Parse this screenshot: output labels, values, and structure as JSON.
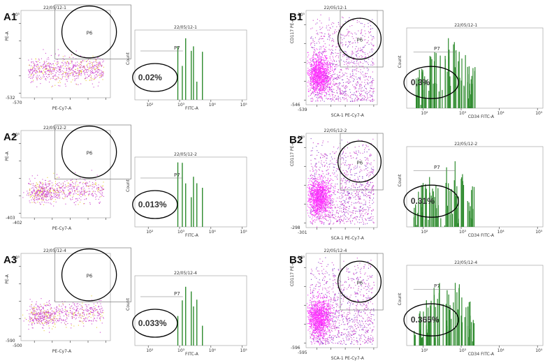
{
  "figure": {
    "panels": [
      {
        "id": "A1",
        "row": 0,
        "col": 0,
        "sample": "22/05/12-1",
        "ylabel": "PE-A",
        "xlabel": "PE-Cy7-A",
        "gate": "P6",
        "ytick_bottom": "-532",
        "xtick_left": "-570",
        "ytick_top": "10⁵"
      },
      {
        "id": "A2",
        "row": 1,
        "col": 0,
        "sample": "22/05/12-2",
        "ylabel": "PE-A",
        "xlabel": "PE-Cy7-A",
        "gate": "P6",
        "ytick_bottom": "-403",
        "xtick_left": "-402",
        "ytick_top": "10⁵"
      },
      {
        "id": "A3",
        "row": 2,
        "col": 0,
        "sample": "22/05/12-4",
        "ylabel": "PE-A",
        "xlabel": "PE-Cy7-A",
        "gate": "P6",
        "ytick_bottom": "-590",
        "xtick_left": "-500",
        "ytick_top": "10⁵"
      },
      {
        "id": "B1",
        "row": 0,
        "col": 1,
        "sample": "22/05/12-1",
        "ylabel": "CD117 PE-A",
        "xlabel": "SCA-1 PE-Cy7-A",
        "gate": "P6",
        "ytick_bottom": "-546",
        "xtick_left": "-539",
        "ytick_top": "10⁵"
      },
      {
        "id": "B2",
        "row": 1,
        "col": 1,
        "sample": "22/05/12-2",
        "ylabel": "CD117 PE-A",
        "xlabel": "SCA-1 PE-Cy7-A",
        "gate": "P6",
        "ytick_bottom": "-298",
        "xtick_left": "-301",
        "ytick_top": "10⁵"
      },
      {
        "id": "B3",
        "row": 2,
        "col": 1,
        "sample": "22/05/12-4",
        "ylabel": "CD117 PE-A",
        "xlabel": "SCA-1 PE-Cy7-A",
        "gate": "P6",
        "ytick_bottom": "-596",
        "xtick_left": "-595",
        "ytick_top": "10⁵"
      }
    ],
    "histograms": [
      {
        "id": "A1h",
        "row": 0,
        "col": 0,
        "sample": "22/05/12-1",
        "xlabel": "FITC-A",
        "ylabel": "Count",
        "gate": "P7",
        "percent": "0.02%"
      },
      {
        "id": "A2h",
        "row": 1,
        "col": 0,
        "sample": "22/05/12-2",
        "xlabel": "FITC-A",
        "ylabel": "Count",
        "gate": "P7",
        "percent": "0.013%"
      },
      {
        "id": "A3h",
        "row": 2,
        "col": 0,
        "sample": "22/05/12-4",
        "xlabel": "FITC-A",
        "ylabel": "Count",
        "gate": "P7",
        "percent": "0.033%"
      },
      {
        "id": "B1h",
        "row": 0,
        "col": 1,
        "sample": "22/05/12-1",
        "xlabel": "CD34 FITC-A",
        "ylabel": "Count",
        "gate": "P7",
        "percent": "0,3%"
      },
      {
        "id": "B2h",
        "row": 1,
        "col": 1,
        "sample": "22/05/12-2",
        "xlabel": "CD34 FITC-A",
        "ylabel": "Count",
        "gate": "P7",
        "percent": "0.31%"
      },
      {
        "id": "B3h",
        "row": 2,
        "col": 1,
        "sample": "22/05/12-4",
        "xlabel": "CD34 FITC-A",
        "ylabel": "Count",
        "gate": "P7",
        "percent": "0.365%"
      }
    ],
    "xticks_hist": [
      "10²",
      "10³",
      "10⁴",
      "10⁵"
    ],
    "colors": {
      "dots_primary": "#cc44cc",
      "dots_secondary": "#e6cc33",
      "dense": "#ff33ff",
      "bars": "#2e8b2e",
      "gate_circle": "#000000"
    }
  },
  "chart_data": [
    {
      "type": "scatter",
      "title": "22/05/12-1",
      "xlabel": "PE-Cy7-A",
      "ylabel": "PE-A",
      "gates": [
        "P6"
      ]
    },
    {
      "type": "bar",
      "title": "22/05/12-1",
      "xlabel": "FITC-A",
      "ylabel": "Count",
      "gates": [
        "P7"
      ],
      "annotation": "0.02%"
    },
    {
      "type": "scatter",
      "title": "22/05/12-2",
      "xlabel": "PE-Cy7-A",
      "ylabel": "PE-A",
      "gates": [
        "P6"
      ]
    },
    {
      "type": "bar",
      "title": "22/05/12-2",
      "xlabel": "FITC-A",
      "ylabel": "Count",
      "gates": [
        "P7"
      ],
      "annotation": "0.013%"
    },
    {
      "type": "scatter",
      "title": "22/05/12-4",
      "xlabel": "PE-Cy7-A",
      "ylabel": "PE-A",
      "gates": [
        "P6"
      ]
    },
    {
      "type": "bar",
      "title": "22/05/12-4",
      "xlabel": "FITC-A",
      "ylabel": "Count",
      "gates": [
        "P7"
      ],
      "annotation": "0.033%"
    },
    {
      "type": "scatter",
      "title": "22/05/12-1",
      "xlabel": "SCA-1 PE-Cy7-A",
      "ylabel": "CD117 PE-A",
      "gates": [
        "P6"
      ]
    },
    {
      "type": "bar",
      "title": "22/05/12-1",
      "xlabel": "CD34 FITC-A",
      "ylabel": "Count",
      "gates": [
        "P7"
      ],
      "annotation": "0,3%"
    },
    {
      "type": "scatter",
      "title": "22/05/12-2",
      "xlabel": "SCA-1 PE-Cy7-A",
      "ylabel": "CD117 PE-A",
      "gates": [
        "P6"
      ]
    },
    {
      "type": "bar",
      "title": "22/05/12-2",
      "xlabel": "CD34 FITC-A",
      "ylabel": "Count",
      "gates": [
        "P7"
      ],
      "annotation": "0.31%"
    },
    {
      "type": "scatter",
      "title": "22/05/12-4",
      "xlabel": "SCA-1 PE-Cy7-A",
      "ylabel": "CD117 PE-A",
      "gates": [
        "P6"
      ]
    },
    {
      "type": "bar",
      "title": "22/05/12-4",
      "xlabel": "CD34 FITC-A",
      "ylabel": "Count",
      "gates": [
        "P7"
      ],
      "annotation": "0.365%"
    }
  ]
}
